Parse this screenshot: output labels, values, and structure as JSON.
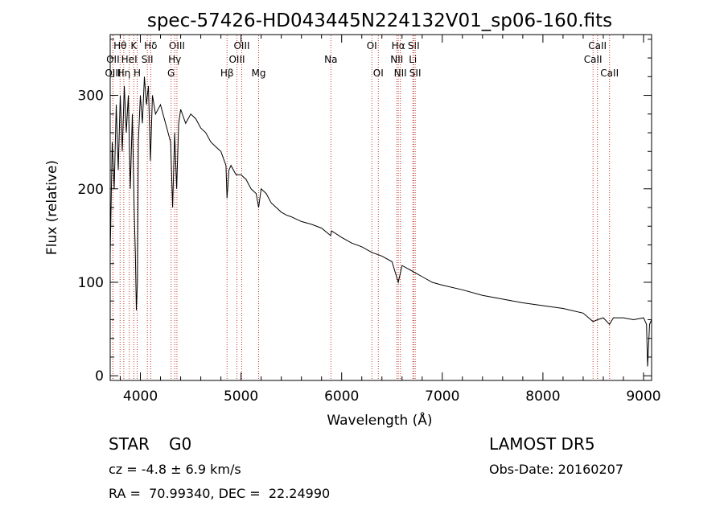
{
  "chart_data": {
    "type": "line",
    "title": "spec-57426-HD043445N224132V01_sp06-160.fits",
    "xlabel": "Wavelength (Å)",
    "ylabel": "Flux (relative)",
    "xlim": [
      3700,
      9080
    ],
    "ylim": [
      -5,
      365
    ],
    "xticks": [
      4000,
      5000,
      6000,
      7000,
      8000,
      9000
    ],
    "yticks": [
      0,
      100,
      200,
      300
    ],
    "grid": false,
    "series": [
      {
        "x": [
          3700,
          3720,
          3740,
          3760,
          3780,
          3800,
          3820,
          3840,
          3860,
          3880,
          3900,
          3920,
          3940,
          3950,
          3960,
          3970,
          3980,
          4000,
          4020,
          4040,
          4060,
          4080,
          4100,
          4120,
          4150,
          4200,
          4250,
          4300,
          4320,
          4340,
          4360,
          4380,
          4400,
          4450,
          4500,
          4550,
          4600,
          4650,
          4700,
          4750,
          4800,
          4850,
          4861,
          4880,
          4900,
          4950,
          5000,
          5050,
          5100,
          5150,
          5175,
          5200,
          5250,
          5300,
          5350,
          5400,
          5450,
          5500,
          5600,
          5700,
          5800,
          5890,
          5900,
          6000,
          6100,
          6200,
          6300,
          6400,
          6500,
          6563,
          6600,
          6700,
          6800,
          6900,
          7000,
          7200,
          7400,
          7600,
          7800,
          8000,
          8200,
          8400,
          8498,
          8542,
          8600,
          8662,
          8700,
          8800,
          8900,
          9000,
          9030,
          9040,
          9060,
          9080
        ],
        "values": [
          130,
          250,
          200,
          290,
          220,
          300,
          240,
          310,
          260,
          300,
          200,
          280,
          170,
          130,
          70,
          100,
          250,
          300,
          270,
          320,
          290,
          310,
          230,
          300,
          280,
          290,
          270,
          250,
          180,
          260,
          200,
          270,
          285,
          270,
          280,
          275,
          265,
          260,
          250,
          245,
          240,
          225,
          190,
          220,
          225,
          215,
          215,
          210,
          200,
          195,
          180,
          200,
          195,
          185,
          180,
          175,
          172,
          170,
          165,
          162,
          158,
          150,
          155,
          148,
          142,
          138,
          132,
          128,
          122,
          100,
          118,
          112,
          106,
          100,
          97,
          92,
          86,
          82,
          78,
          75,
          72,
          67,
          58,
          60,
          62,
          55,
          62,
          62,
          60,
          62,
          55,
          10,
          55,
          60
        ],
        "color": "#000000"
      }
    ],
    "annotation_lines": [
      {
        "label": "Hθ",
        "x": 3798,
        "row": 1
      },
      {
        "label": "OII",
        "x": 3727,
        "row": 2
      },
      {
        "label": "OIII",
        "x": 3727,
        "row": 3
      },
      {
        "label": "K",
        "x": 3934,
        "row": 1
      },
      {
        "label": "HeI",
        "x": 3889,
        "row": 2
      },
      {
        "label": "Hη",
        "x": 3835,
        "row": 3
      },
      {
        "label": "Hδ",
        "x": 4102,
        "row": 1
      },
      {
        "label": "SII",
        "x": 4069,
        "row": 2
      },
      {
        "label": "H",
        "x": 3968,
        "row": 3
      },
      {
        "label": "OIII",
        "x": 4363,
        "row": 1
      },
      {
        "label": "Hγ",
        "x": 4341,
        "row": 2
      },
      {
        "label": "G",
        "x": 4305,
        "row": 3
      },
      {
        "label": "OIII",
        "x": 5007,
        "row": 1
      },
      {
        "label": "OIII",
        "x": 4959,
        "row": 2
      },
      {
        "label": "Hβ",
        "x": 4861,
        "row": 3
      },
      {
        "label": "Mg",
        "x": 5175,
        "row": 3
      },
      {
        "label": "Na",
        "x": 5893,
        "row": 2
      },
      {
        "label": "OI",
        "x": 6300,
        "row": 1
      },
      {
        "label": "OI",
        "x": 6364,
        "row": 3
      },
      {
        "label": "Hα",
        "x": 6563,
        "row": 1
      },
      {
        "label": "NII",
        "x": 6548,
        "row": 2
      },
      {
        "label": "NII",
        "x": 6583,
        "row": 3
      },
      {
        "label": "SII",
        "x": 6716,
        "row": 1
      },
      {
        "label": "Li",
        "x": 6708,
        "row": 2
      },
      {
        "label": "SII",
        "x": 6731,
        "row": 3
      },
      {
        "label": "CaII",
        "x": 8542,
        "row": 1
      },
      {
        "label": "CaII",
        "x": 8498,
        "row": 2
      },
      {
        "label": "CaII",
        "x": 8662,
        "row": 3
      }
    ],
    "annotation_color": "#c0392b"
  },
  "info": {
    "class_label": "STAR",
    "subclass_label": "G0",
    "survey": "LAMOST DR5",
    "cz_text": "cz = -4.8 ± 6.9 km/s",
    "obs_date": "Obs-Date: 20160207",
    "coords": "RA =  70.99340, DEC =  22.24990"
  }
}
